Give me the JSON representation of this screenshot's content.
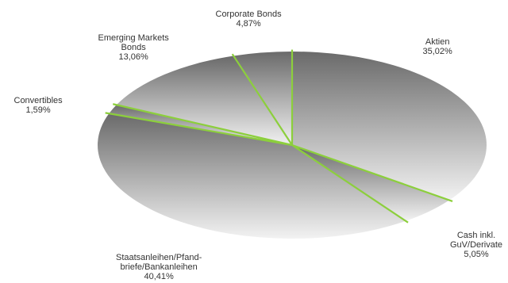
{
  "chart_data": {
    "type": "pie",
    "title": "",
    "slices": [
      {
        "label_lines": [
          "Aktien",
          "35,02%"
        ],
        "label": "Aktien",
        "value": 35.02
      },
      {
        "label_lines": [
          "Cash inkl.",
          "GuV/Derivate",
          "5,05%"
        ],
        "label": "Cash inkl. GuV/Derivate",
        "value": 5.05
      },
      {
        "label_lines": [
          "Staatsanleihen/Pfand-",
          "briefe/Bankanleihen",
          "40,41%"
        ],
        "label": "Staatsanleihen/Pfandbriefe/Bankanleihen",
        "value": 40.41
      },
      {
        "label_lines": [
          "Convertibles",
          "1,59%"
        ],
        "label": "Convertibles",
        "value": 1.59
      },
      {
        "label_lines": [
          "Emerging Markets",
          "Bonds",
          "13,06%"
        ],
        "label": "Emerging Markets Bonds",
        "value": 13.06
      },
      {
        "label_lines": [
          "Corporate Bonds",
          "4,87%"
        ],
        "label": "Corporate Bonds",
        "value": 4.87
      }
    ],
    "colors": {
      "separator": "#8ccf3c",
      "fill_top": "#6a6a6a",
      "fill_bottom": "#f2f2f2",
      "label_text": "#333333"
    },
    "legend": "none"
  }
}
